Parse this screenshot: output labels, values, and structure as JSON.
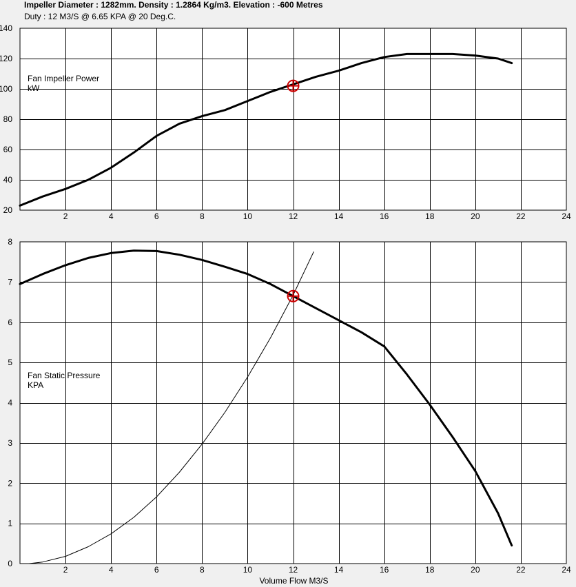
{
  "header": {
    "title": "Impeller Diameter : 1282mm.  Density : 1.2864 Kg/m3. Elevation : -600 Metres",
    "subtitle": "Duty : 12 M3/S @ 6.65 KPA @ 20 Deg.C."
  },
  "colors": {
    "background": "#f0f0f0",
    "plot_background": "#ffffff",
    "curve": "#000000",
    "duty_marker": "#cc0000"
  },
  "chart_data": [
    {
      "type": "line",
      "title": "",
      "label_lines": [
        "Fan Impeller Power",
        "kW"
      ],
      "xlabel": "",
      "ylabel": "",
      "xlim": [
        0,
        24
      ],
      "ylim": [
        20,
        140
      ],
      "xticks": [
        2,
        4,
        6,
        8,
        10,
        12,
        14,
        16,
        18,
        20,
        22,
        24
      ],
      "yticks": [
        20,
        40,
        60,
        80,
        100,
        120,
        140
      ],
      "grid": true,
      "series": [
        {
          "x": [
            0,
            1,
            2,
            3,
            4,
            5,
            6,
            7,
            8,
            9,
            10,
            11,
            12,
            13,
            14,
            15,
            16,
            17,
            18,
            19,
            20,
            21,
            21.6
          ],
          "y": [
            23,
            29,
            34,
            40,
            48,
            58,
            69,
            77,
            82,
            86,
            92,
            98,
            103,
            108,
            112,
            117,
            121,
            123,
            123,
            123,
            122,
            120,
            117
          ]
        }
      ],
      "duty_point": {
        "x": 12,
        "y": 102
      }
    },
    {
      "type": "line",
      "title": "",
      "label_lines": [
        "Fan Static Pressure",
        "KPA"
      ],
      "xlabel": "Volume Flow M3/S",
      "ylabel": "",
      "xlim": [
        0,
        24
      ],
      "ylim": [
        0,
        8
      ],
      "xticks": [
        2,
        4,
        6,
        8,
        10,
        12,
        14,
        16,
        18,
        20,
        22,
        24
      ],
      "yticks": [
        0,
        1,
        2,
        3,
        4,
        5,
        6,
        7,
        8
      ],
      "grid": true,
      "series": [
        {
          "x": [
            0,
            1,
            2,
            3,
            4,
            5,
            6,
            7,
            8,
            9,
            10,
            11,
            12,
            13,
            14,
            15,
            16,
            17,
            18,
            19,
            20,
            21,
            21.6
          ],
          "y": [
            6.95,
            7.2,
            7.42,
            7.6,
            7.72,
            7.78,
            7.77,
            7.68,
            7.55,
            7.38,
            7.2,
            6.95,
            6.65,
            6.35,
            6.05,
            5.75,
            5.4,
            4.7,
            3.95,
            3.15,
            2.3,
            1.25,
            0.45
          ]
        },
        {
          "x": [
            0.4,
            1,
            2,
            3,
            4,
            5,
            6,
            7,
            8,
            9,
            10,
            11,
            12,
            12.9
          ],
          "y": [
            0,
            0.04,
            0.18,
            0.42,
            0.74,
            1.15,
            1.66,
            2.27,
            2.97,
            3.76,
            4.64,
            5.61,
            6.68,
            7.75
          ]
        }
      ],
      "duty_point": {
        "x": 12,
        "y": 6.65
      }
    }
  ]
}
